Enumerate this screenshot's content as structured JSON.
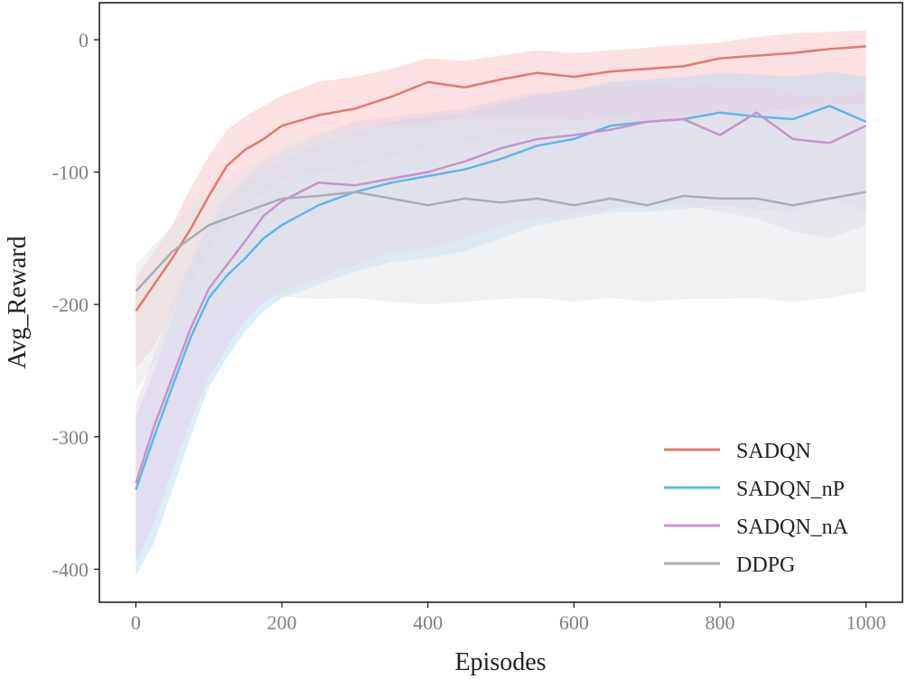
{
  "chart_data": {
    "type": "line",
    "xlabel": "Episodes",
    "ylabel": "Avg_Reward",
    "xlim": [
      -50,
      1050
    ],
    "ylim": [
      -425,
      28
    ],
    "xticks": [
      0,
      200,
      400,
      600,
      800,
      1000
    ],
    "yticks": [
      0,
      -100,
      -200,
      -300,
      -400
    ],
    "xtick_labels": [
      "0",
      "200",
      "400",
      "600",
      "800",
      "1000"
    ],
    "ytick_labels": [
      "0",
      "-100",
      "-200",
      "-300",
      "-400"
    ],
    "grid": false,
    "legend_position": "bottom-right",
    "x": [
      0,
      25,
      50,
      75,
      100,
      125,
      150,
      175,
      200,
      250,
      300,
      350,
      400,
      450,
      500,
      550,
      600,
      650,
      700,
      750,
      800,
      850,
      900,
      950,
      1000
    ],
    "series": [
      {
        "name": "SADQN",
        "color": "#e07a70",
        "band_color": "#f8c4c4",
        "values": [
          -205,
          -185,
          -165,
          -143,
          -118,
          -95,
          -83,
          -75,
          -65,
          -57,
          -52,
          -43,
          -32,
          -36,
          -30,
          -25,
          -28,
          -24,
          -22,
          -20,
          -14,
          -12,
          -10,
          -7,
          -5
        ],
        "lower": [
          -248,
          -232,
          -205,
          -185,
          -160,
          -135,
          -125,
          -115,
          -105,
          -100,
          -95,
          -88,
          -80,
          -78,
          -70,
          -70,
          -68,
          -65,
          -62,
          -60,
          -58,
          -55,
          -52,
          -50,
          -48
        ],
        "upper": [
          -180,
          -160,
          -140,
          -112,
          -88,
          -68,
          -58,
          -50,
          -42,
          -32,
          -28,
          -22,
          -14,
          -16,
          -12,
          -8,
          -10,
          -8,
          -6,
          -4,
          -2,
          2,
          5,
          6,
          7
        ]
      },
      {
        "name": "SADQN_nP",
        "color": "#5fb8e8",
        "band_color": "#bcdcf2",
        "values": [
          -340,
          -300,
          -262,
          -225,
          -195,
          -178,
          -165,
          -150,
          -140,
          -125,
          -115,
          -108,
          -103,
          -98,
          -90,
          -80,
          -75,
          -65,
          -62,
          -60,
          -55,
          -58,
          -60,
          -50,
          -62
        ],
        "lower": [
          -405,
          -380,
          -340,
          -300,
          -262,
          -240,
          -220,
          -205,
          -195,
          -185,
          -175,
          -168,
          -165,
          -160,
          -150,
          -140,
          -135,
          -130,
          -130,
          -128,
          -125,
          -128,
          -130,
          -120,
          -130
        ],
        "upper": [
          -285,
          -250,
          -210,
          -172,
          -142,
          -122,
          -110,
          -100,
          -92,
          -80,
          -70,
          -62,
          -58,
          -55,
          -48,
          -42,
          -38,
          -32,
          -30,
          -28,
          -25,
          -26,
          -28,
          -24,
          -28
        ]
      },
      {
        "name": "SADQN_nA",
        "color": "#c794cc",
        "band_color": "#e7cfe5",
        "values": [
          -335,
          -292,
          -255,
          -218,
          -188,
          -170,
          -152,
          -133,
          -122,
          -108,
          -110,
          -105,
          -100,
          -92,
          -82,
          -75,
          -72,
          -68,
          -62,
          -60,
          -72,
          -55,
          -75,
          -78,
          -65
        ],
        "lower": [
          -395,
          -365,
          -325,
          -288,
          -255,
          -232,
          -212,
          -198,
          -190,
          -180,
          -170,
          -160,
          -158,
          -150,
          -140,
          -135,
          -132,
          -128,
          -125,
          -125,
          -130,
          -135,
          -145,
          -150,
          -140
        ],
        "upper": [
          -275,
          -238,
          -200,
          -168,
          -138,
          -118,
          -105,
          -92,
          -85,
          -72,
          -62,
          -58,
          -55,
          -52,
          -45,
          -40,
          -38,
          -36,
          -34,
          -32,
          -35,
          -35,
          -40,
          -45,
          -38
        ]
      },
      {
        "name": "DDPG",
        "color": "#a9adb3",
        "band_color": "#dfe3e7",
        "values": [
          -190,
          -175,
          -160,
          -150,
          -140,
          -135,
          -130,
          -125,
          -120,
          -118,
          -115,
          -120,
          -125,
          -120,
          -123,
          -120,
          -125,
          -120,
          -125,
          -118,
          -120,
          -120,
          -125,
          -120,
          -115
        ],
        "lower": [
          -265,
          -245,
          -225,
          -212,
          -202,
          -198,
          -196,
          -195,
          -194,
          -196,
          -195,
          -198,
          -200,
          -198,
          -196,
          -195,
          -198,
          -195,
          -198,
          -196,
          -196,
          -195,
          -198,
          -195,
          -190
        ],
        "upper": [
          -170,
          -155,
          -140,
          -125,
          -115,
          -106,
          -96,
          -90,
          -82,
          -70,
          -66,
          -64,
          -62,
          -60,
          -56,
          -56,
          -60,
          -58,
          -60,
          -58,
          -55,
          -56,
          -60,
          -55,
          -52
        ]
      }
    ]
  }
}
